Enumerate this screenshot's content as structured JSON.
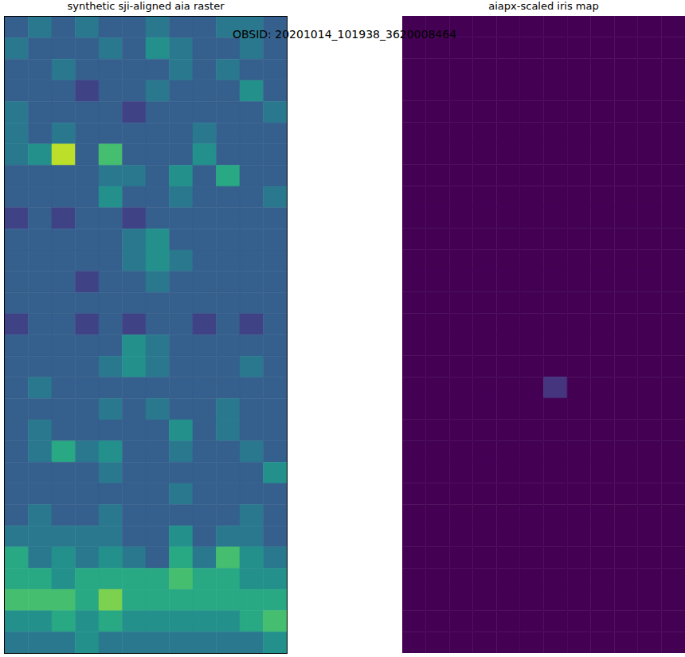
{
  "suptitle": "OBSID: 20201014_101938_3620008464",
  "chart_data": [
    {
      "type": "heatmap",
      "title": "synthetic sji-aligned aia raster",
      "color": "viridis",
      "tick_labels": false,
      "xlim": [
        0,
        12
      ],
      "ylim": [
        0,
        30
      ],
      "color_range": [
        0,
        10
      ],
      "cells": [
        [
          3,
          4,
          3,
          4,
          3,
          3,
          4,
          3,
          3,
          4,
          4,
          3
        ],
        [
          4,
          3,
          3,
          3,
          4,
          3,
          5,
          4,
          3,
          3,
          4,
          3
        ],
        [
          3,
          3,
          4,
          3,
          3,
          3,
          3,
          4,
          3,
          4,
          3,
          3
        ],
        [
          3,
          3,
          3,
          2,
          3,
          3,
          4,
          3,
          3,
          3,
          5,
          3
        ],
        [
          4,
          3,
          3,
          3,
          3,
          2,
          3,
          3,
          3,
          3,
          3,
          4
        ],
        [
          4,
          3,
          4,
          3,
          3,
          3,
          3,
          3,
          4,
          3,
          3,
          3
        ],
        [
          4,
          5,
          9,
          3,
          7,
          3,
          3,
          3,
          5,
          3,
          3,
          3
        ],
        [
          3,
          3,
          3,
          3,
          4,
          4,
          3,
          5,
          3,
          6,
          3,
          3
        ],
        [
          3,
          3,
          3,
          3,
          5,
          3,
          3,
          4,
          3,
          3,
          3,
          4
        ],
        [
          2,
          3,
          2,
          3,
          3,
          2,
          3,
          3,
          3,
          3,
          3,
          3
        ],
        [
          3,
          3,
          3,
          3,
          3,
          4,
          5,
          3,
          3,
          3,
          3,
          3
        ],
        [
          3,
          3,
          3,
          3,
          3,
          4,
          5,
          4,
          3,
          3,
          3,
          3
        ],
        [
          3,
          3,
          3,
          2,
          3,
          3,
          4,
          3,
          3,
          3,
          3,
          3
        ],
        [
          3,
          3,
          3,
          3,
          3,
          3,
          3,
          3,
          3,
          3,
          3,
          3
        ],
        [
          2,
          3,
          3,
          2,
          3,
          2,
          3,
          3,
          2,
          3,
          2,
          3
        ],
        [
          3,
          3,
          3,
          3,
          3,
          5,
          4,
          3,
          3,
          3,
          3,
          3
        ],
        [
          3,
          3,
          3,
          3,
          4,
          5,
          4,
          3,
          3,
          3,
          4,
          3
        ],
        [
          3,
          4,
          3,
          3,
          3,
          3,
          3,
          3,
          3,
          3,
          3,
          3
        ],
        [
          3,
          3,
          3,
          3,
          4,
          3,
          4,
          3,
          3,
          4,
          3,
          3
        ],
        [
          3,
          4,
          3,
          3,
          3,
          3,
          3,
          5,
          3,
          4,
          3,
          3
        ],
        [
          3,
          4,
          6,
          4,
          5,
          3,
          3,
          4,
          3,
          3,
          4,
          3
        ],
        [
          3,
          3,
          3,
          3,
          4,
          3,
          3,
          3,
          3,
          3,
          3,
          5
        ],
        [
          3,
          3,
          3,
          3,
          3,
          3,
          3,
          4,
          3,
          3,
          3,
          3
        ],
        [
          3,
          4,
          3,
          3,
          4,
          3,
          3,
          3,
          3,
          3,
          4,
          3
        ],
        [
          4,
          4,
          4,
          4,
          4,
          3,
          3,
          5,
          3,
          4,
          4,
          3
        ],
        [
          6,
          4,
          5,
          4,
          5,
          4,
          3,
          6,
          4,
          7,
          5,
          4
        ],
        [
          6,
          6,
          5,
          6,
          6,
          6,
          6,
          7,
          6,
          6,
          5,
          5
        ],
        [
          7,
          7,
          7,
          6,
          8,
          6,
          6,
          6,
          6,
          6,
          6,
          6
        ],
        [
          5,
          5,
          6,
          5,
          6,
          5,
          5,
          5,
          5,
          5,
          6,
          7
        ],
        [
          4,
          4,
          4,
          5,
          4,
          4,
          4,
          4,
          4,
          4,
          4,
          5
        ]
      ]
    },
    {
      "type": "heatmap",
      "title": "aiapx-scaled iris map",
      "color": "viridis",
      "tick_labels": false,
      "xlim": [
        0,
        12
      ],
      "ylim": [
        0,
        30
      ],
      "color_range": [
        0,
        10
      ],
      "cells": [
        [
          0,
          0,
          0,
          0,
          0,
          0,
          0,
          0,
          0,
          0,
          0,
          0
        ],
        [
          0,
          0,
          0,
          0,
          0,
          0,
          0,
          0,
          0,
          0,
          0,
          0
        ],
        [
          0,
          0,
          0,
          0,
          0,
          0,
          0,
          0,
          0,
          0,
          0,
          0
        ],
        [
          0,
          0,
          0,
          0,
          0,
          0,
          0,
          0,
          0,
          0,
          0,
          0
        ],
        [
          0,
          0,
          0,
          0,
          0,
          0,
          0,
          0,
          0,
          0,
          0,
          0
        ],
        [
          0,
          0,
          0,
          0,
          0,
          0,
          0,
          0,
          0,
          0,
          0,
          0
        ],
        [
          0,
          0,
          0,
          0,
          0,
          0,
          0,
          0,
          0,
          0,
          0,
          0
        ],
        [
          0,
          0,
          0,
          0,
          0,
          0,
          0,
          0,
          0,
          0,
          0,
          0
        ],
        [
          0,
          0,
          0,
          0,
          0,
          0,
          0,
          0,
          0,
          0,
          0,
          0
        ],
        [
          0,
          0,
          0,
          0,
          0,
          0,
          0,
          0,
          0,
          0,
          0,
          0
        ],
        [
          0,
          0,
          0,
          0,
          0,
          0,
          0,
          0,
          0,
          0,
          0,
          0
        ],
        [
          0,
          0,
          0,
          0,
          0,
          0,
          0,
          0,
          0,
          0,
          0,
          0
        ],
        [
          0,
          0,
          0,
          0,
          0,
          0,
          0,
          0,
          0,
          0,
          0,
          0
        ],
        [
          0,
          0,
          0,
          0,
          0,
          0,
          0,
          0,
          0,
          0,
          0,
          0
        ],
        [
          0,
          0,
          0,
          0,
          0,
          0,
          0,
          0,
          0,
          0,
          0,
          0
        ],
        [
          0,
          0,
          0,
          0,
          0,
          0,
          0,
          0,
          0,
          0,
          0,
          0
        ],
        [
          0,
          0,
          0,
          0,
          0,
          0,
          0,
          0,
          0,
          0,
          0,
          0
        ],
        [
          0,
          0,
          0,
          0,
          0,
          0,
          1.5,
          0,
          0,
          0,
          0,
          0
        ],
        [
          0,
          0,
          0,
          0,
          0,
          0,
          0,
          0,
          0,
          0,
          0,
          0
        ],
        [
          0,
          0,
          0,
          0,
          0,
          0,
          0,
          0,
          0,
          0,
          0,
          0
        ],
        [
          0,
          0,
          0,
          0,
          0,
          0,
          0,
          0,
          0,
          0,
          0,
          0
        ],
        [
          0,
          0,
          0,
          0,
          0,
          0,
          0,
          0,
          0,
          0,
          0,
          0
        ],
        [
          0,
          0,
          0,
          0,
          0,
          0,
          0,
          0,
          0,
          0,
          0,
          0
        ],
        [
          0,
          0,
          0,
          0,
          0,
          0,
          0,
          0,
          0,
          0,
          0,
          0
        ],
        [
          0,
          0,
          0,
          0,
          0,
          0,
          0,
          0,
          0,
          0,
          0,
          0
        ],
        [
          0,
          0,
          0,
          0,
          0,
          0,
          0,
          0,
          0,
          0,
          0,
          0
        ],
        [
          0,
          0,
          0,
          0,
          0,
          0,
          0,
          0,
          0,
          0,
          0,
          0
        ],
        [
          0,
          0,
          0,
          0,
          0,
          0,
          0,
          0,
          0,
          0,
          0,
          0
        ],
        [
          0,
          0,
          0,
          0,
          0,
          0,
          0,
          0,
          0,
          0,
          0,
          0
        ],
        [
          0,
          0,
          0,
          0,
          0,
          0,
          0,
          0,
          0,
          0,
          0,
          0
        ]
      ]
    }
  ]
}
